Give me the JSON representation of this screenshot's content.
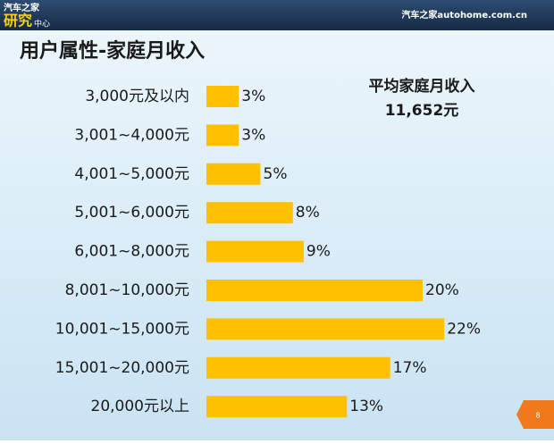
{
  "header": {
    "logo_top": "汽车之家",
    "logo_main": "研究",
    "logo_sub": "中心",
    "site": "汽车之家autohome.com.cn"
  },
  "page_number": "8",
  "chart_data": {
    "type": "hbar",
    "title": "用户属性-家庭月收入",
    "annotation": {
      "label": "平均家庭月收入",
      "value": "11,652元"
    },
    "categories": [
      "3,000元及以内",
      "3,001~4,000元",
      "4,001~5,000元",
      "5,001~6,000元",
      "6,001~8,000元",
      "8,001~10,000元",
      "10,001~15,000元",
      "15,001~20,000元",
      "20,000元以上"
    ],
    "values": [
      3,
      3,
      5,
      8,
      9,
      20,
      22,
      17,
      13
    ],
    "value_labels": [
      "3%",
      "3%",
      "5%",
      "8%",
      "9%",
      "20%",
      "22%",
      "17%",
      "13%"
    ],
    "color": "#ffc000"
  }
}
